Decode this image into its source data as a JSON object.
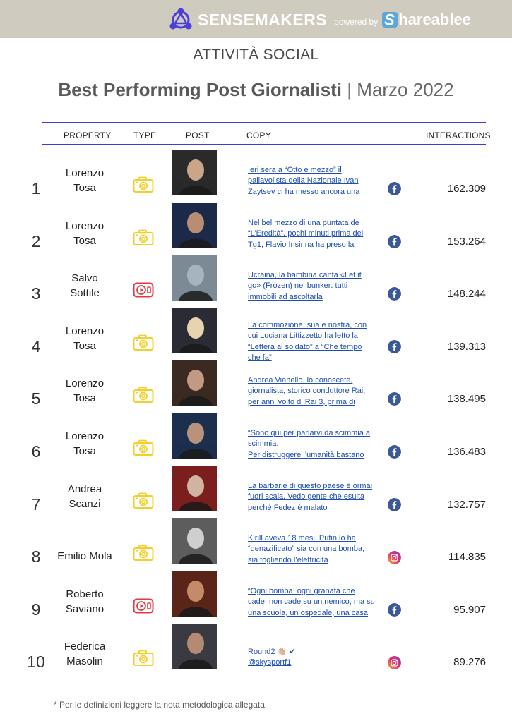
{
  "header": {
    "brand": "SENSEMAKERS",
    "powered_by": "powered by",
    "partner": "hareablee"
  },
  "section_title": "ATTIVITÀ SOCIAL",
  "title": {
    "main": "Best Performing Post Giornalisti",
    "separator": "|",
    "period": "Marzo 2022"
  },
  "columns": {
    "property": "PROPERTY",
    "type": "TYPE",
    "post": "POST",
    "copy": "COPY",
    "interactions": "INTERACTIONS"
  },
  "rows": [
    {
      "rank": "1",
      "name_l1": "Lorenzo",
      "name_l2": "Tosa",
      "type": "photo",
      "network": "facebook",
      "copy_lines": [
        "Ieri sera a “Otto e mezzo” il",
        "pallavolista della Nazionale Ivan",
        "Zaytsev ci ha messo ancora una",
        ""
      ],
      "interactions": "162.309"
    },
    {
      "rank": "2",
      "name_l1": "Lorenzo",
      "name_l2": "Tosa",
      "type": "photo",
      "network": "facebook",
      "copy_lines": [
        "Nel bel mezzo di una puntata de",
        "“L’Eredità”, pochi minuti prima del",
        "Tg1, Flavio Insinna ha preso la",
        ""
      ],
      "interactions": "153.264"
    },
    {
      "rank": "3",
      "name_l1": "Salvo",
      "name_l2": "Sottile",
      "type": "video",
      "network": "facebook",
      "copy_lines": [
        "Ucraina, la bambina canta «Let it",
        "go» (Frozen) nel bunker: tutti",
        "immobili ad ascoltarla",
        ""
      ],
      "interactions": "148.244"
    },
    {
      "rank": "4",
      "name_l1": "Lorenzo",
      "name_l2": "Tosa",
      "type": "photo",
      "network": "facebook",
      "copy_lines": [
        "La commozione, sua e nostra, con",
        "cui Luciana Littizzetto ha letto la",
        "“Lettera al soldato” a “Che tempo",
        "che fa”"
      ],
      "interactions": "139.313"
    },
    {
      "rank": "5",
      "name_l1": "Lorenzo",
      "name_l2": "Tosa",
      "type": "photo",
      "network": "facebook",
      "copy_lines": [
        "Andrea Vianello, lo conoscete,",
        "giornalista, storico conduttore Rai,",
        "per anni volto di Rai 3, prima di",
        ""
      ],
      "interactions": "138.495"
    },
    {
      "rank": "6",
      "name_l1": "Lorenzo",
      "name_l2": "Tosa",
      "type": "photo",
      "network": "facebook",
      "copy_lines": [
        "“Sono qui per parlarvi da scimmia a",
        "scimmia.",
        "Per distruggere l’umanità bastano",
        ""
      ],
      "interactions": "136.483"
    },
    {
      "rank": "7",
      "name_l1": "Andrea",
      "name_l2": "Scanzi",
      "type": "photo",
      "network": "facebook",
      "copy_lines": [
        "La barbarie di questo paese è ormai",
        "fuori scala. Vedo gente che esulta",
        "perché Fedez è malato",
        ""
      ],
      "interactions": "132.757"
    },
    {
      "rank": "8",
      "name_l1": "Emilio Mola",
      "name_l2": "",
      "type": "photo",
      "network": "instagram",
      "copy_lines": [
        "Kirill aveva 18 mesi. Putin lo ha",
        "“denazificato” sia con una bomba,",
        "sia togliendo l’elettricità",
        ""
      ],
      "interactions": "114.835"
    },
    {
      "rank": "9",
      "name_l1": "Roberto",
      "name_l2": "Saviano",
      "type": "video",
      "network": "facebook",
      "copy_lines": [
        "“Ogni bomba, ogni granata che",
        "cade, non cade su un nemico, ma su",
        "una scuola, un ospedale, una casa",
        ""
      ],
      "interactions": "95.907"
    },
    {
      "rank": "10",
      "name_l1": "Federica",
      "name_l2": "Masolin",
      "type": "photo",
      "network": "instagram",
      "copy_lines": [
        "Round2 👋🏼 ✔",
        "@skysportf1",
        "",
        ""
      ],
      "interactions": "89.276"
    }
  ],
  "footnote": "* Per le definizioni leggere la nota metodologica allegata.",
  "colors": {
    "header_bg": "#cfcbbf",
    "rule": "#3b3bd6",
    "link": "#1f4fb0",
    "photo_icon": "#f3cf2b",
    "video_icon": "#e03a45",
    "facebook": "#3b5998"
  }
}
